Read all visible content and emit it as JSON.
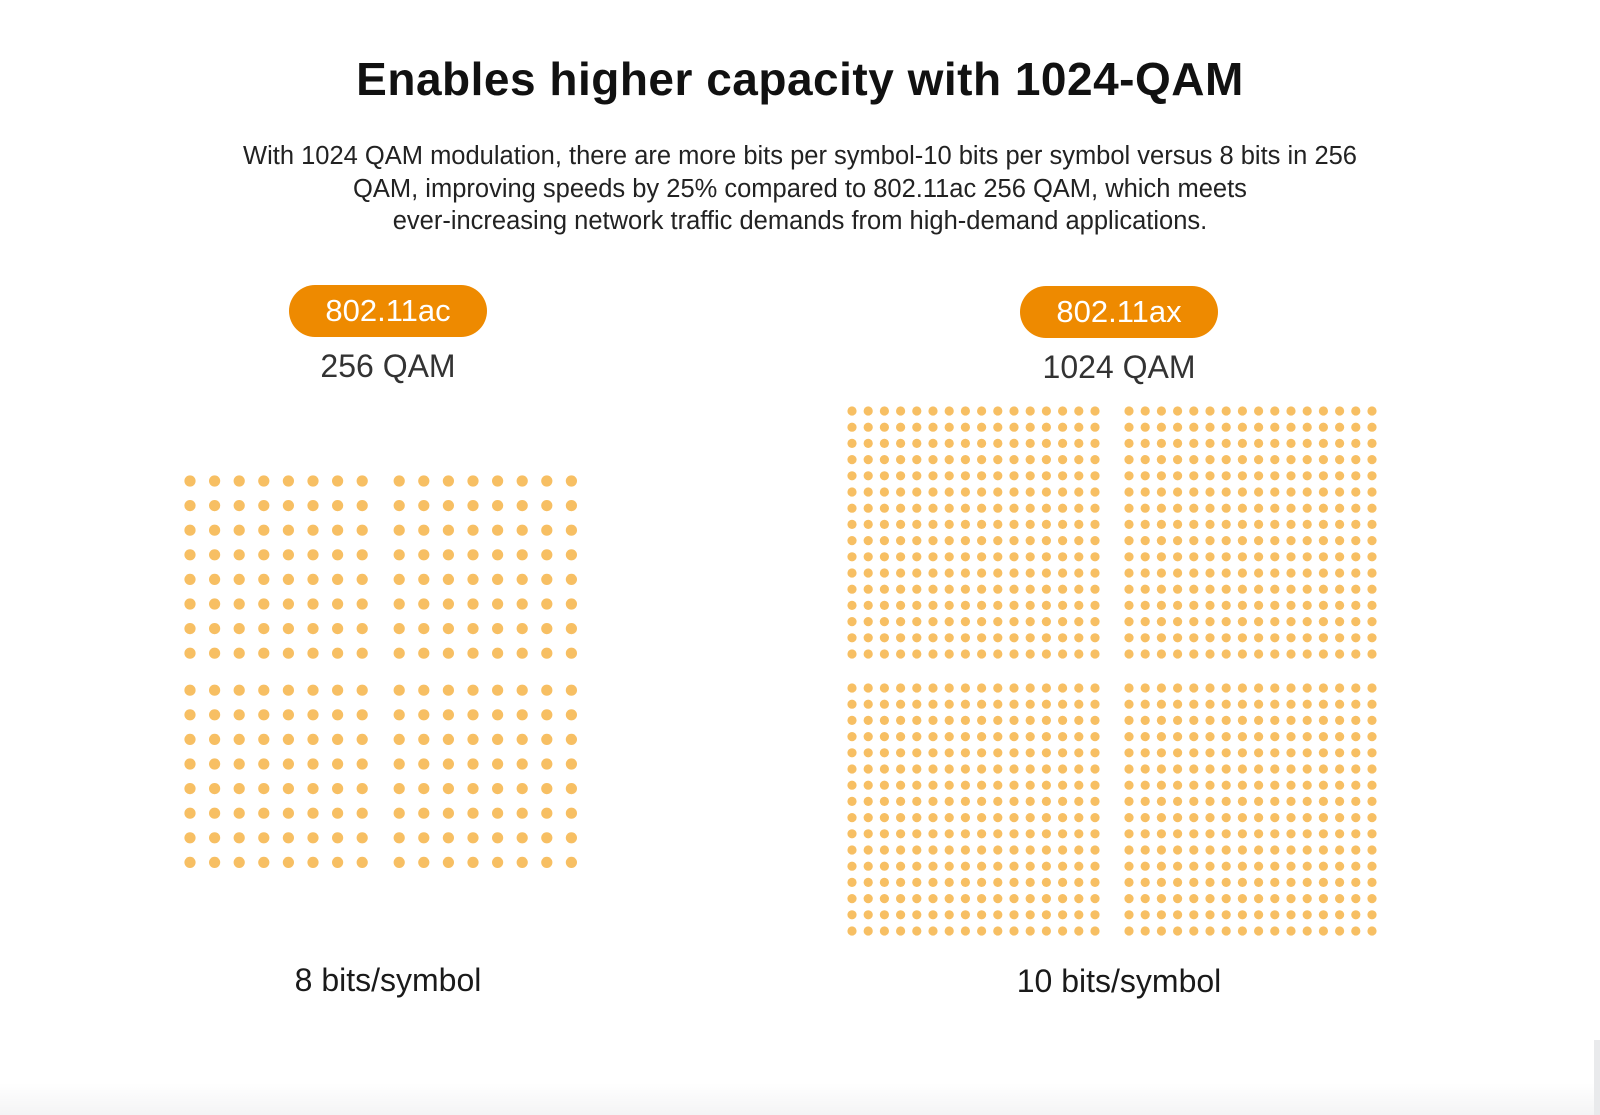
{
  "header": {
    "title": "Enables higher capacity with 1024-QAM",
    "intro_lines": [
      "With 1024 QAM modulation, there are more bits per symbol-10 bits per symbol versus 8 bits in 256",
      "QAM, improving speeds by 25% compared to 802.11ac 256 QAM, which meets",
      "ever-increasing network traffic demands from high-demand applications."
    ]
  },
  "colors": {
    "accent": "#ee8a00",
    "dot": "#f7bf63"
  },
  "panels": [
    {
      "standard": "802.11ac",
      "modulation": "256 QAM",
      "bits_per_symbol": "8 bits/symbol",
      "points": 256,
      "grid_per_side": 16,
      "quadrant_per_side": 8
    },
    {
      "standard": "802.11ax",
      "modulation": "1024 QAM",
      "bits_per_symbol": "10 bits/symbol",
      "points": 1024,
      "grid_per_side": 32,
      "quadrant_per_side": 16
    }
  ]
}
